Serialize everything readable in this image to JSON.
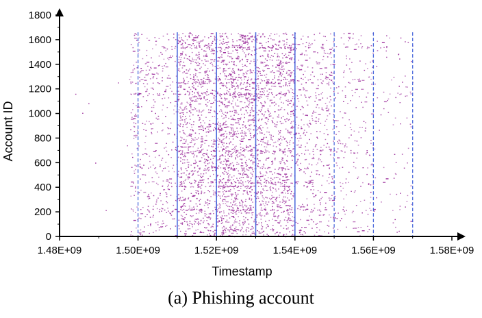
{
  "chart_data": {
    "type": "scatter",
    "xlabel": "Timestamp",
    "ylabel": "Account ID",
    "xlim": [
      1480000000,
      1580000000
    ],
    "ylim": [
      0,
      1800
    ],
    "x_ticks": [
      "1.48E+09",
      "1.50E+09",
      "1.52E+09",
      "1.54E+09",
      "1.56E+09",
      "1.58E+09"
    ],
    "y_ticks": [
      "0",
      "200",
      "400",
      "600",
      "800",
      "1000",
      "1200",
      "1400",
      "1600",
      "1800"
    ],
    "vertical_lines_x": [
      1500000000,
      1510000000,
      1520000000,
      1530000000,
      1540000000,
      1550000000,
      1560000000,
      1570000000
    ],
    "point_density_by_x_range": [
      {
        "x_range": [
          1480000000,
          1498000000
        ],
        "approx_points": 8
      },
      {
        "x_range": [
          1498000000,
          1510000000
        ],
        "approx_points": 450
      },
      {
        "x_range": [
          1510000000,
          1520000000
        ],
        "approx_points": 1000
      },
      {
        "x_range": [
          1520000000,
          1530000000
        ],
        "approx_points": 1300
      },
      {
        "x_range": [
          1530000000,
          1540000000
        ],
        "approx_points": 1000
      },
      {
        "x_range": [
          1540000000,
          1550000000
        ],
        "approx_points": 450
      },
      {
        "x_range": [
          1550000000,
          1560000000
        ],
        "approx_points": 220
      },
      {
        "x_range": [
          1560000000,
          1570000000
        ],
        "approx_points": 90
      }
    ],
    "account_id_max": 1660,
    "horizontal_bands_y": [
      220,
      410,
      440,
      560,
      700,
      1160,
      1250,
      1280,
      1540
    ],
    "point_color": "#9B2D9B",
    "line_color": "#3A5BD9",
    "grid": false,
    "legend": "none",
    "caption": "(a)  Phishing account"
  }
}
